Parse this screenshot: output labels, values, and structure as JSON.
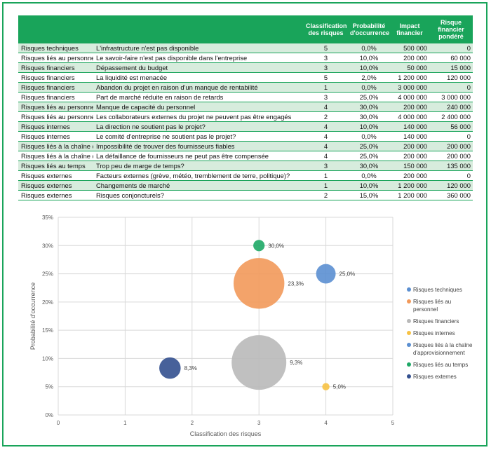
{
  "table": {
    "headers": [
      "",
      "",
      "Classification des risques",
      "Probabilité d'occurrence",
      "Impact financier",
      "Risque financier pondéré"
    ],
    "rows": [
      [
        "Risques techniques",
        "L'infrastructure n'est pas disponible",
        "5",
        "0,0%",
        "500 000",
        "0"
      ],
      [
        "Risques liés au personnel",
        "Le savoir-faire n'est pas disponible dans l'entreprise",
        "3",
        "10,0%",
        "200 000",
        "60 000"
      ],
      [
        "Risques financiers",
        "Dépassement du budget",
        "3",
        "10,0%",
        "50 000",
        "15 000"
      ],
      [
        "Risques financiers",
        "La liquidité est menacée",
        "5",
        "2,0%",
        "1 200 000",
        "120 000"
      ],
      [
        "Risques financiers",
        "Abandon du projet en raison d'un manque de rentabilité",
        "1",
        "0,0%",
        "3 000 000",
        "0"
      ],
      [
        "Risques financiers",
        "Part de marché réduite en raison de retards",
        "3",
        "25,0%",
        "4 000 000",
        "3 000 000"
      ],
      [
        "Risques liés au personnel",
        "Manque de capacité du personnel",
        "4",
        "30,0%",
        "200 000",
        "240 000"
      ],
      [
        "Risques liés au personnel",
        "Les collaborateurs externes du projet ne peuvent pas être engagés",
        "2",
        "30,0%",
        "4 000 000",
        "2 400 000"
      ],
      [
        "Risques internes",
        "La direction ne soutient pas le projet?",
        "4",
        "10,0%",
        "140 000",
        "56 000"
      ],
      [
        "Risques internes",
        "Le comité d'entreprise ne soutient pas le projet?",
        "4",
        "0,0%",
        "140 000",
        "0"
      ],
      [
        "Risques liés à la chaîne d'approvisionnement",
        "Impossibilité de trouver des fournisseurs fiables",
        "4",
        "25,0%",
        "200 000",
        "200 000"
      ],
      [
        "Risques liés à la chaîne d'approvisionnement",
        "La défaillance de fournisseurs ne peut pas être compensée",
        "4",
        "25,0%",
        "200 000",
        "200 000"
      ],
      [
        "Risques liés au temps",
        "Trop peu de marge de temps?",
        "3",
        "30,0%",
        "150 000",
        "135 000"
      ],
      [
        "Risques externes",
        "Facteurs externes (grève, météo, tremblement de terre, politique)?",
        "1",
        "0,0%",
        "200 000",
        "0"
      ],
      [
        "Risques externes",
        "Changements de marché",
        "1",
        "10,0%",
        "1 200 000",
        "120 000"
      ],
      [
        "Risques externes",
        "Risques conjoncturels?",
        "2",
        "15,0%",
        "1 200 000",
        "360 000"
      ]
    ]
  },
  "chart_data": {
    "type": "bubble",
    "xlabel": "Classification des risques",
    "ylabel": "Probabilité d'occurrence",
    "xlim": [
      0,
      5
    ],
    "ylim": [
      0,
      35
    ],
    "xticks": [
      "0",
      "1",
      "2",
      "3",
      "4",
      "5"
    ],
    "yticks": [
      "0%",
      "5%",
      "10%",
      "15%",
      "20%",
      "25%",
      "30%",
      "35%"
    ],
    "legend_position": "right",
    "series": [
      {
        "name": "Risques techniques",
        "color": "#5b8fd1",
        "points": []
      },
      {
        "name": "Risques liés au personnel",
        "color": "#f2995a",
        "points": [
          {
            "x": 3,
            "y": 23.3,
            "size": 2700000,
            "label": "23,3%"
          }
        ]
      },
      {
        "name": "Risques financiers",
        "color": "#b9b9b9",
        "points": [
          {
            "x": 3,
            "y": 9.3,
            "size": 3135000,
            "label": "9,3%"
          }
        ]
      },
      {
        "name": "Risques internes",
        "color": "#f7c244",
        "points": [
          {
            "x": 4,
            "y": 5.0,
            "size": 56000,
            "label": "5,0%"
          }
        ]
      },
      {
        "name": "Risques liés à la chaîne d'approvisionnement",
        "color": "#5b8fd1",
        "points": [
          {
            "x": 4,
            "y": 25.0,
            "size": 400000,
            "label": "25,0%"
          }
        ]
      },
      {
        "name": "Risques liés au temps",
        "color": "#1ea866",
        "points": [
          {
            "x": 3,
            "y": 30.0,
            "size": 135000,
            "label": "30,0%"
          }
        ]
      },
      {
        "name": "Risques externes",
        "color": "#33508f",
        "points": [
          {
            "x": 1.67,
            "y": 8.3,
            "size": 480000,
            "label": "8,3%"
          }
        ]
      }
    ]
  }
}
